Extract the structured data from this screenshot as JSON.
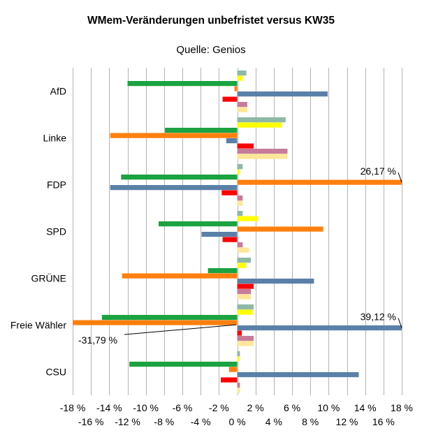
{
  "chart_data": {
    "type": "bar",
    "orientation": "horizontal",
    "title": "WMem-Veränderungen unbefristet versus KW35",
    "subtitle": "Quelle: Genios",
    "categories": [
      "AfD",
      "Linke",
      "FDP",
      "SPD",
      "GRÜNE",
      "Freie Wähler",
      "CSU"
    ],
    "series": [
      {
        "color": "#8fb8a6",
        "values": [
          1.0,
          5.3,
          0.6,
          0.6,
          1.5,
          1.8,
          0.3
        ]
      },
      {
        "color": "#ffff00",
        "values": [
          0.6,
          4.9,
          0.3,
          2.3,
          1.0,
          1.7,
          0.2
        ]
      },
      {
        "color": "#1aa340",
        "values": [
          -12.0,
          -7.9,
          -12.7,
          -8.6,
          -3.2,
          -14.8,
          -11.8
        ]
      },
      {
        "color": "#ff7f0e",
        "values": [
          -0.3,
          -13.9,
          26.17,
          9.4,
          -12.6,
          -31.79,
          -0.9
        ]
      },
      {
        "color": "#5b80a8",
        "values": [
          9.9,
          -1.2,
          -13.9,
          -3.9,
          8.4,
          39.12,
          13.3
        ]
      },
      {
        "color": "#ff0000",
        "values": [
          -1.6,
          1.8,
          -1.7,
          -1.6,
          1.8,
          0.5,
          -1.8
        ]
      },
      {
        "color": "#c77c99",
        "values": [
          1.1,
          5.5,
          0.6,
          0.6,
          1.5,
          1.8,
          0.3
        ]
      },
      {
        "color": "#ffe699",
        "values": [
          1.1,
          5.5,
          0.6,
          1.3,
          1.5,
          1.8,
          0.3
        ]
      }
    ],
    "xlim": [
      -18,
      18
    ],
    "x_ticks_top": [
      "-18 %",
      "-14 %",
      "-10 %",
      "-6 %",
      "-2 %",
      "2 %",
      "6 %",
      "10 %",
      "14 %",
      "18 %"
    ],
    "x_ticks_bottom": [
      "-16 %",
      "-12 %",
      "-8 %",
      "-4 %",
      "0 %",
      "4 %",
      "8 %",
      "12 %",
      "16 %"
    ],
    "annotations": [
      {
        "text": "26,17 %",
        "category": "FDP",
        "series": 3
      },
      {
        "text": "39,12 %",
        "category": "Freie Wähler",
        "series": 4
      },
      {
        "text": "-31,79 %",
        "category": "Freie Wähler",
        "series": 3
      }
    ],
    "grid": true,
    "legend": "none"
  }
}
